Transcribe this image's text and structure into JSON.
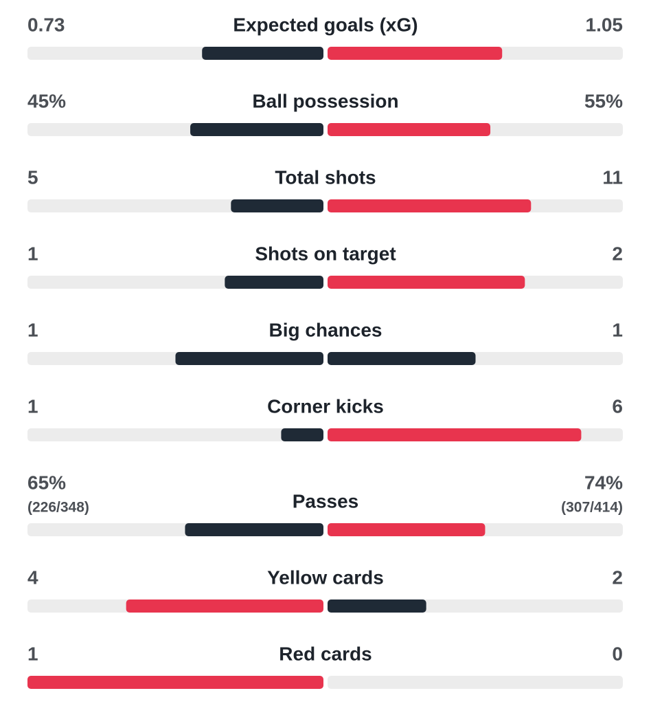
{
  "stats": [
    {
      "name": "Expected goals (xG)",
      "values": [
        0.73,
        1.05
      ]
    },
    {
      "name": "Ball possession",
      "values": [
        45,
        55
      ],
      "value_labels": [
        "45%",
        "55%"
      ]
    },
    {
      "name": "Total shots",
      "values": [
        5,
        11
      ]
    },
    {
      "name": "Shots on target",
      "values": [
        1,
        2
      ]
    },
    {
      "name": "Big chances",
      "values": [
        1,
        1
      ]
    },
    {
      "name": "Corner kicks",
      "values": [
        1,
        6
      ]
    },
    {
      "name": "Passes",
      "values": [
        65,
        74
      ],
      "value_labels": [
        "65%",
        "74%"
      ],
      "details": [
        "(226/348)",
        "(307/414)"
      ]
    },
    {
      "name": "Yellow cards",
      "values": [
        4,
        2
      ]
    },
    {
      "name": "Red cards",
      "values": [
        1,
        0
      ]
    }
  ],
  "base_color": "#1f2a36",
  "highlight_color": "#e8344e",
  "track_color": "#ececec"
}
